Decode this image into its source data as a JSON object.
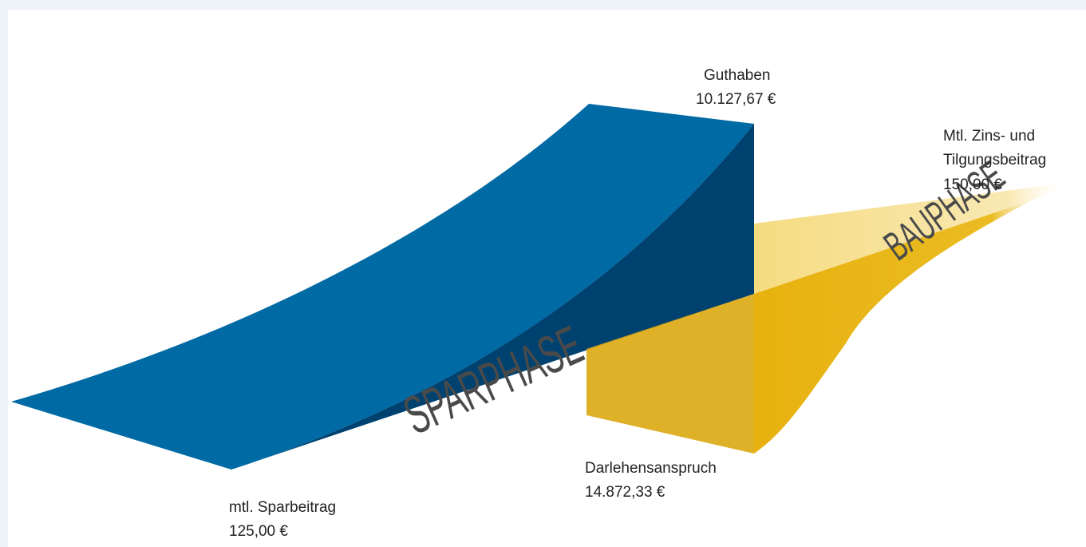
{
  "labels": {
    "guthaben": {
      "title": "Guthaben",
      "value": "10.127,67 €"
    },
    "rate": {
      "title": [
        "Mtl. Zins- und",
        "Tilgungsbeitrag"
      ],
      "value": "150,00 €"
    },
    "darlehen": {
      "title": "Darlehensanspruch",
      "value": "14.872,33 €"
    },
    "sparbeitrag": {
      "title": "mtl. Sparbeitrag",
      "value": "125,00 €"
    }
  },
  "phases": {
    "spar": "SPARPHASE",
    "bau": "BAUPHASE"
  }
}
